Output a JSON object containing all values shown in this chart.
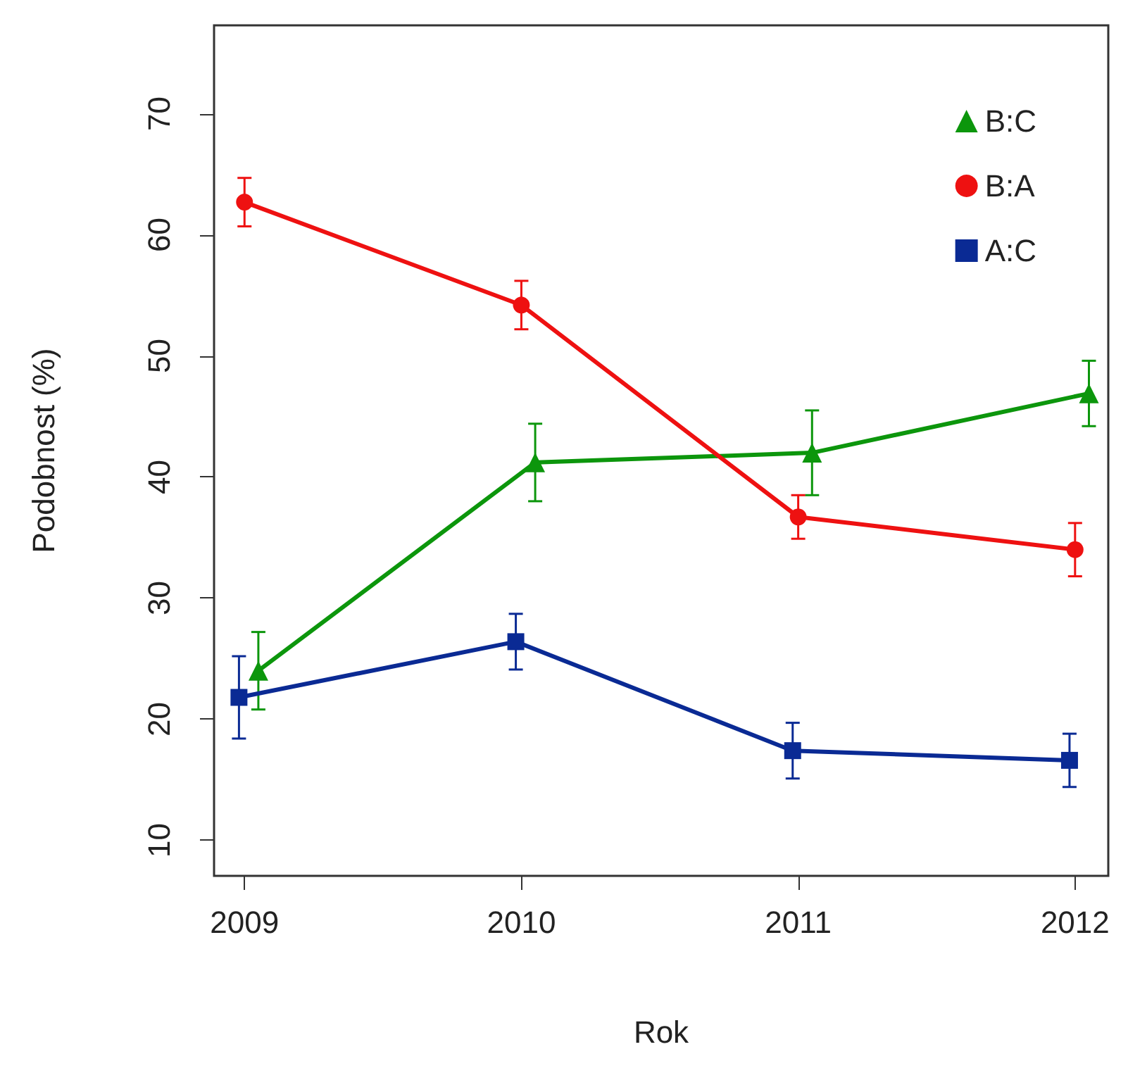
{
  "chart_data": {
    "type": "line",
    "xlabel": "Rok",
    "ylabel": "Podobnost (%)",
    "xlim": [
      2008.89,
      2012.12
    ],
    "xticks": [
      2009,
      2010,
      2011,
      2012
    ],
    "ylim": [
      7.06,
      77.3
    ],
    "yticks": [
      10,
      20,
      30,
      40,
      50,
      60,
      70
    ],
    "grid": false,
    "legend": "top right",
    "line_style": "solid",
    "series": [
      {
        "name": "B:C",
        "color": "#0c960c",
        "marker": "triangle",
        "x": [
          2009.05,
          2010.05,
          2011.05,
          2012.05
        ],
        "values": [
          24.0,
          41.2,
          42.0,
          46.9
        ],
        "errors": [
          3.2,
          3.2,
          3.5,
          2.7
        ]
      },
      {
        "name": "B:A",
        "color": "#ee1111",
        "marker": "circle",
        "x": [
          2009.0,
          2010.0,
          2011.0,
          2012.0
        ],
        "values": [
          62.7,
          54.2,
          36.7,
          34.0
        ],
        "errors": [
          2.0,
          2.0,
          1.8,
          2.2
        ]
      },
      {
        "name": "A:C",
        "color": "#0a2a94",
        "marker": "square",
        "x": [
          2008.98,
          2009.98,
          2010.98,
          2011.98
        ],
        "values": [
          21.8,
          26.4,
          17.4,
          16.6
        ],
        "errors": [
          3.4,
          2.3,
          2.3,
          2.2
        ]
      }
    ]
  }
}
